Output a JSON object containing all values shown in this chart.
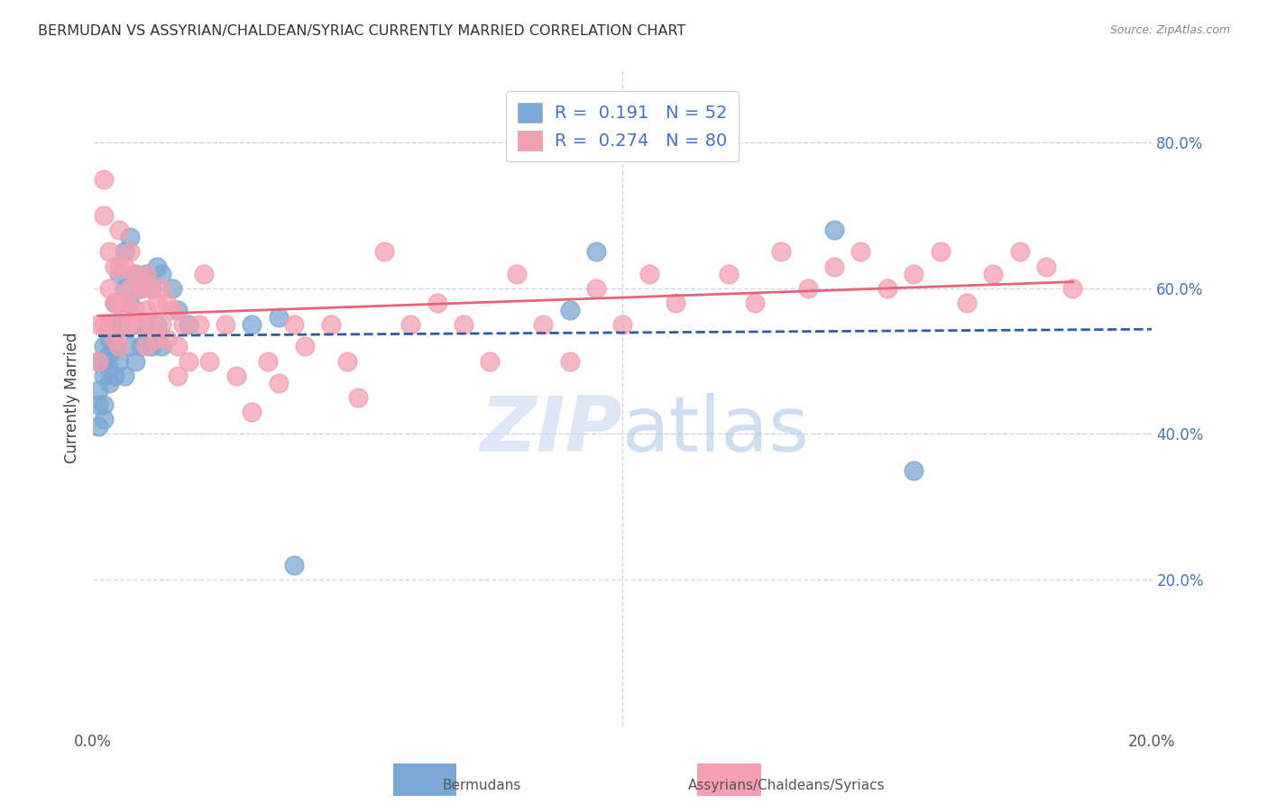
{
  "title": "BERMUDAN VS ASSYRIAN/CHALDEAN/SYRIAC CURRENTLY MARRIED CORRELATION CHART",
  "source": "Source: ZipAtlas.com",
  "ylabel": "Currently Married",
  "xlabel": "",
  "watermark": "ZIPatlas",
  "xlim": [
    0.0,
    0.2
  ],
  "ylim": [
    0.0,
    0.9
  ],
  "xticks": [
    0.0,
    0.05,
    0.1,
    0.15,
    0.2
  ],
  "yticks_left": [],
  "yticks_right": [
    0.2,
    0.4,
    0.6,
    0.8
  ],
  "ytick_right_labels": [
    "20.0%",
    "40.0%",
    "60.0%",
    "80.0%"
  ],
  "xtick_labels": [
    "0.0%",
    "",
    "",
    "",
    "20.0%"
  ],
  "legend_blue_R": "0.191",
  "legend_blue_N": "52",
  "legend_pink_R": "0.274",
  "legend_pink_N": "80",
  "blue_color": "#7BA7D4",
  "pink_color": "#F4A0B0",
  "blue_line_color": "#2E5FA3",
  "pink_line_color": "#E8637A",
  "grid_color": "#D0D8E8",
  "background_color": "#FFFFFF",
  "blue_points_x": [
    0.001,
    0.001,
    0.001,
    0.001,
    0.002,
    0.002,
    0.002,
    0.002,
    0.002,
    0.003,
    0.003,
    0.003,
    0.003,
    0.003,
    0.004,
    0.004,
    0.004,
    0.004,
    0.005,
    0.005,
    0.005,
    0.005,
    0.006,
    0.006,
    0.006,
    0.006,
    0.007,
    0.007,
    0.007,
    0.008,
    0.008,
    0.008,
    0.009,
    0.009,
    0.01,
    0.01,
    0.011,
    0.011,
    0.012,
    0.012,
    0.013,
    0.013,
    0.015,
    0.016,
    0.018,
    0.03,
    0.035,
    0.038,
    0.09,
    0.095,
    0.14,
    0.155
  ],
  "blue_points_y": [
    0.5,
    0.46,
    0.44,
    0.41,
    0.52,
    0.5,
    0.48,
    0.44,
    0.42,
    0.55,
    0.53,
    0.51,
    0.49,
    0.47,
    0.58,
    0.54,
    0.52,
    0.48,
    0.62,
    0.58,
    0.55,
    0.5,
    0.65,
    0.6,
    0.55,
    0.48,
    0.67,
    0.58,
    0.52,
    0.62,
    0.55,
    0.5,
    0.6,
    0.52,
    0.62,
    0.55,
    0.6,
    0.52,
    0.63,
    0.55,
    0.62,
    0.52,
    0.6,
    0.57,
    0.55,
    0.55,
    0.56,
    0.22,
    0.57,
    0.65,
    0.68,
    0.35
  ],
  "pink_points_x": [
    0.001,
    0.001,
    0.002,
    0.002,
    0.002,
    0.003,
    0.003,
    0.003,
    0.004,
    0.004,
    0.004,
    0.005,
    0.005,
    0.005,
    0.005,
    0.006,
    0.006,
    0.006,
    0.007,
    0.007,
    0.007,
    0.008,
    0.008,
    0.009,
    0.009,
    0.01,
    0.01,
    0.01,
    0.011,
    0.011,
    0.012,
    0.012,
    0.013,
    0.013,
    0.014,
    0.014,
    0.015,
    0.016,
    0.016,
    0.017,
    0.018,
    0.02,
    0.021,
    0.022,
    0.025,
    0.027,
    0.03,
    0.033,
    0.035,
    0.038,
    0.04,
    0.045,
    0.048,
    0.05,
    0.055,
    0.06,
    0.065,
    0.07,
    0.075,
    0.08,
    0.085,
    0.09,
    0.095,
    0.1,
    0.105,
    0.11,
    0.12,
    0.125,
    0.13,
    0.135,
    0.14,
    0.145,
    0.15,
    0.155,
    0.16,
    0.165,
    0.17,
    0.175,
    0.18,
    0.185
  ],
  "pink_points_y": [
    0.55,
    0.5,
    0.75,
    0.7,
    0.55,
    0.65,
    0.6,
    0.55,
    0.63,
    0.58,
    0.53,
    0.68,
    0.63,
    0.58,
    0.52,
    0.63,
    0.58,
    0.55,
    0.65,
    0.6,
    0.55,
    0.62,
    0.57,
    0.6,
    0.55,
    0.62,
    0.57,
    0.52,
    0.6,
    0.55,
    0.58,
    0.53,
    0.6,
    0.55,
    0.58,
    0.53,
    0.57,
    0.52,
    0.48,
    0.55,
    0.5,
    0.55,
    0.62,
    0.5,
    0.55,
    0.48,
    0.43,
    0.5,
    0.47,
    0.55,
    0.52,
    0.55,
    0.5,
    0.45,
    0.65,
    0.55,
    0.58,
    0.55,
    0.5,
    0.62,
    0.55,
    0.5,
    0.6,
    0.55,
    0.62,
    0.58,
    0.62,
    0.58,
    0.65,
    0.6,
    0.63,
    0.65,
    0.6,
    0.62,
    0.65,
    0.58,
    0.62,
    0.65,
    0.63,
    0.6
  ]
}
